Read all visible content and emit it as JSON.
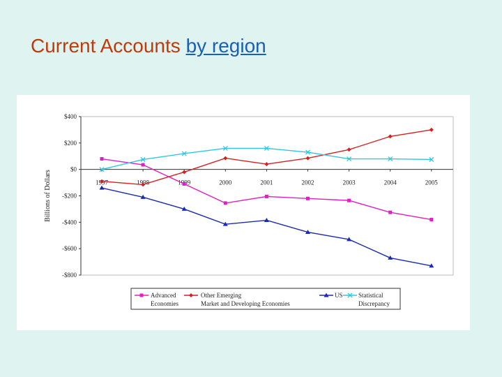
{
  "slide": {
    "title_prefix": "Current Accounts",
    "title_link": "by region"
  },
  "chart_data": {
    "type": "line",
    "x": [
      "1997",
      "1998",
      "1999",
      "2000",
      "2001",
      "2002",
      "2003",
      "2004",
      "2005"
    ],
    "ylabel": "Billions of Dollars",
    "ylim": [
      -800,
      400
    ],
    "yticks": [
      400,
      200,
      0,
      -200,
      -400,
      -600,
      -800
    ],
    "ytick_labels": [
      "$400",
      "$200",
      "$0",
      "-$200",
      "-$400",
      "-$600",
      "-$800"
    ],
    "legend_position": "bottom",
    "series": [
      {
        "name": [
          "Advanced",
          "Economies"
        ],
        "color": "#e020c0",
        "marker": "square",
        "values": [
          80,
          35,
          -110,
          -255,
          -205,
          -220,
          -235,
          -325,
          -380
        ]
      },
      {
        "name": [
          "Other Emerging",
          "Market and Developing Economies"
        ],
        "color": "#d42020",
        "marker": "diamond",
        "values": [
          -90,
          -115,
          -20,
          85,
          40,
          85,
          150,
          250,
          300
        ]
      },
      {
        "name": [
          "US",
          ""
        ],
        "color": "#1a2bb0",
        "marker": "triangle",
        "values": [
          -140,
          -210,
          -300,
          -415,
          -385,
          -475,
          -530,
          -670,
          -730
        ]
      },
      {
        "name": [
          "Statistical",
          "Discrepancy"
        ],
        "color": "#2cc8e0",
        "marker": "x",
        "values": [
          0,
          75,
          120,
          160,
          160,
          130,
          80,
          80,
          75
        ]
      }
    ]
  }
}
